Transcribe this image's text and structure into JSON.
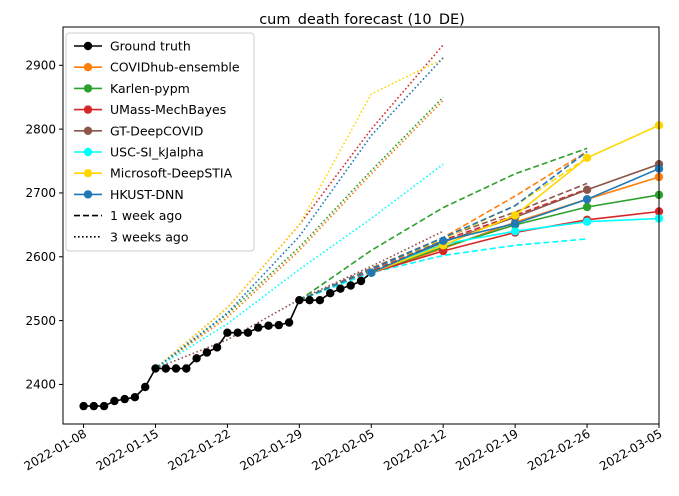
{
  "chart_data": {
    "type": "line",
    "title": "cum_death forecast (10_DE)",
    "xlabel": "",
    "ylabel": "",
    "x_range": [
      "2022-01-06",
      "2022-03-05"
    ],
    "ylim": [
      2338,
      2960
    ],
    "x_ticks": [
      "2022-01-08",
      "2022-01-15",
      "2022-01-22",
      "2022-01-29",
      "2022-02-05",
      "2022-02-12",
      "2022-02-19",
      "2022-02-26",
      "2022-03-05"
    ],
    "y_ticks": [
      2400,
      2500,
      2600,
      2700,
      2800,
      2900
    ],
    "legend_position": "top-left",
    "grid": false,
    "ground_truth": {
      "name": "Ground truth",
      "color": "#000000",
      "dates": [
        "2022-01-08",
        "2022-01-09",
        "2022-01-10",
        "2022-01-11",
        "2022-01-12",
        "2022-01-13",
        "2022-01-14",
        "2022-01-15",
        "2022-01-16",
        "2022-01-17",
        "2022-01-18",
        "2022-01-19",
        "2022-01-20",
        "2022-01-21",
        "2022-01-22",
        "2022-01-23",
        "2022-01-24",
        "2022-01-25",
        "2022-01-26",
        "2022-01-27",
        "2022-01-28",
        "2022-01-29",
        "2022-01-30",
        "2022-01-31",
        "2022-02-01",
        "2022-02-02",
        "2022-02-03",
        "2022-02-04",
        "2022-02-05"
      ],
      "values": [
        2366,
        2366,
        2366,
        2374,
        2377,
        2380,
        2396,
        2425,
        2425,
        2425,
        2425,
        2441,
        2450,
        2458,
        2481,
        2481,
        2481,
        2489,
        2492,
        2493,
        2497,
        2532,
        2532,
        2532,
        2543,
        2550,
        2555,
        2562,
        2575
      ]
    },
    "style_legend": [
      {
        "name": "1 week ago",
        "dash": "dashed"
      },
      {
        "name": "3 weeks ago",
        "dash": "dotted"
      }
    ],
    "series": [
      {
        "name": "COVIDhub-ensemble",
        "color": "#ff7f0e",
        "current": {
          "dates": [
            "2022-02-05",
            "2022-02-12",
            "2022-02-19",
            "2022-02-26",
            "2022-03-05"
          ],
          "values": [
            2575,
            2613,
            2654,
            2690,
            2725
          ]
        },
        "one_week_ago": {
          "dates": [
            "2022-01-29",
            "2022-02-05",
            "2022-02-12",
            "2022-02-19",
            "2022-02-26"
          ],
          "values": [
            2532,
            2578,
            2630,
            2695,
            2765
          ]
        },
        "three_weeks_ago": {
          "dates": [
            "2022-01-15",
            "2022-01-22",
            "2022-01-29",
            "2022-02-05",
            "2022-02-12"
          ],
          "values": [
            2425,
            2505,
            2610,
            2730,
            2845
          ]
        }
      },
      {
        "name": "Karlen-pypm",
        "color": "#2ca02c",
        "current": {
          "dates": [
            "2022-02-05",
            "2022-02-12",
            "2022-02-19",
            "2022-02-26",
            "2022-03-05"
          ],
          "values": [
            2575,
            2615,
            2650,
            2678,
            2697
          ]
        },
        "one_week_ago": {
          "dates": [
            "2022-01-29",
            "2022-02-05",
            "2022-02-12",
            "2022-02-19",
            "2022-02-26"
          ],
          "values": [
            2532,
            2610,
            2677,
            2730,
            2770
          ]
        },
        "three_weeks_ago": {
          "dates": [
            "2022-01-15",
            "2022-01-22",
            "2022-01-29",
            "2022-02-05",
            "2022-02-12"
          ],
          "values": [
            2425,
            2510,
            2615,
            2735,
            2850
          ]
        }
      },
      {
        "name": "UMass-MechBayes",
        "color": "#d62728",
        "current": {
          "dates": [
            "2022-02-05",
            "2022-02-12",
            "2022-02-19",
            "2022-02-26",
            "2022-03-05"
          ],
          "values": [
            2575,
            2609,
            2638,
            2658,
            2671
          ]
        },
        "one_week_ago": {
          "dates": [
            "2022-01-29",
            "2022-02-05",
            "2022-02-12",
            "2022-02-19",
            "2022-02-26"
          ],
          "values": [
            2532,
            2577,
            2626,
            2665,
            2706
          ]
        },
        "three_weeks_ago": {
          "dates": [
            "2022-01-15",
            "2022-01-22",
            "2022-01-29",
            "2022-02-05",
            "2022-02-12"
          ],
          "values": [
            2425,
            2520,
            2650,
            2800,
            2932
          ]
        }
      },
      {
        "name": "GT-DeepCOVID",
        "color": "#8c564b",
        "current": {
          "dates": [
            "2022-02-05",
            "2022-02-12",
            "2022-02-19",
            "2022-02-26",
            "2022-03-05"
          ],
          "values": [
            2575,
            2623,
            2662,
            2705,
            2745
          ]
        },
        "one_week_ago": {
          "dates": [
            "2022-01-29",
            "2022-02-05",
            "2022-02-12",
            "2022-02-19",
            "2022-02-26"
          ],
          "values": [
            2532,
            2582,
            2630,
            2670,
            2715
          ]
        },
        "three_weeks_ago": {
          "dates": [
            "2022-01-15",
            "2022-01-22",
            "2022-01-29",
            "2022-02-05",
            "2022-02-12"
          ],
          "values": [
            2425,
            2470,
            2533,
            2585,
            2640
          ]
        }
      },
      {
        "name": "USC-SI_kJalpha",
        "color": "#00ffff",
        "current": {
          "dates": [
            "2022-02-05",
            "2022-02-12",
            "2022-02-19",
            "2022-02-26",
            "2022-03-05"
          ],
          "values": [
            2575,
            2620,
            2640,
            2655,
            2660
          ]
        },
        "one_week_ago": {
          "dates": [
            "2022-01-29",
            "2022-02-05",
            "2022-02-12",
            "2022-02-19",
            "2022-02-26"
          ],
          "values": [
            2532,
            2575,
            2602,
            2618,
            2628
          ]
        },
        "three_weeks_ago": {
          "dates": [
            "2022-01-15",
            "2022-01-22",
            "2022-01-29",
            "2022-02-05",
            "2022-02-12"
          ],
          "values": [
            2425,
            2495,
            2580,
            2660,
            2745
          ]
        }
      },
      {
        "name": "Microsoft-DeepSTIA",
        "color": "#ffd700",
        "current": {
          "dates": [
            "2022-02-05",
            "2022-02-12",
            "2022-02-19",
            "2022-02-26",
            "2022-03-05"
          ],
          "values": [
            2575,
            2618,
            2665,
            2755,
            2806
          ]
        },
        "one_week_ago": {
          "dates": [
            "2022-01-29",
            "2022-02-05",
            "2022-02-12",
            "2022-02-19",
            "2022-02-26"
          ],
          "values": [
            2532,
            2580,
            2628,
            2680,
            2755
          ]
        },
        "three_weeks_ago": {
          "dates": [
            "2022-01-15",
            "2022-01-22",
            "2022-01-29",
            "2022-02-05",
            "2022-02-12"
          ],
          "values": [
            2425,
            2520,
            2650,
            2855,
            2910
          ]
        }
      },
      {
        "name": "HKUST-DNN",
        "color": "#1f77b4",
        "current": {
          "dates": [
            "2022-02-05",
            "2022-02-12",
            "2022-02-19",
            "2022-02-26",
            "2022-03-05"
          ],
          "values": [
            2575,
            2625,
            2652,
            2690,
            2738
          ]
        },
        "one_week_ago": {
          "dates": [
            "2022-01-29",
            "2022-02-05",
            "2022-02-12",
            "2022-02-19",
            "2022-02-26"
          ],
          "values": [
            2532,
            2580,
            2630,
            2680,
            2765
          ]
        },
        "three_weeks_ago": {
          "dates": [
            "2022-01-15",
            "2022-01-22",
            "2022-01-29",
            "2022-02-05",
            "2022-02-12"
          ],
          "values": [
            2425,
            2512,
            2632,
            2790,
            2912
          ]
        }
      }
    ]
  }
}
